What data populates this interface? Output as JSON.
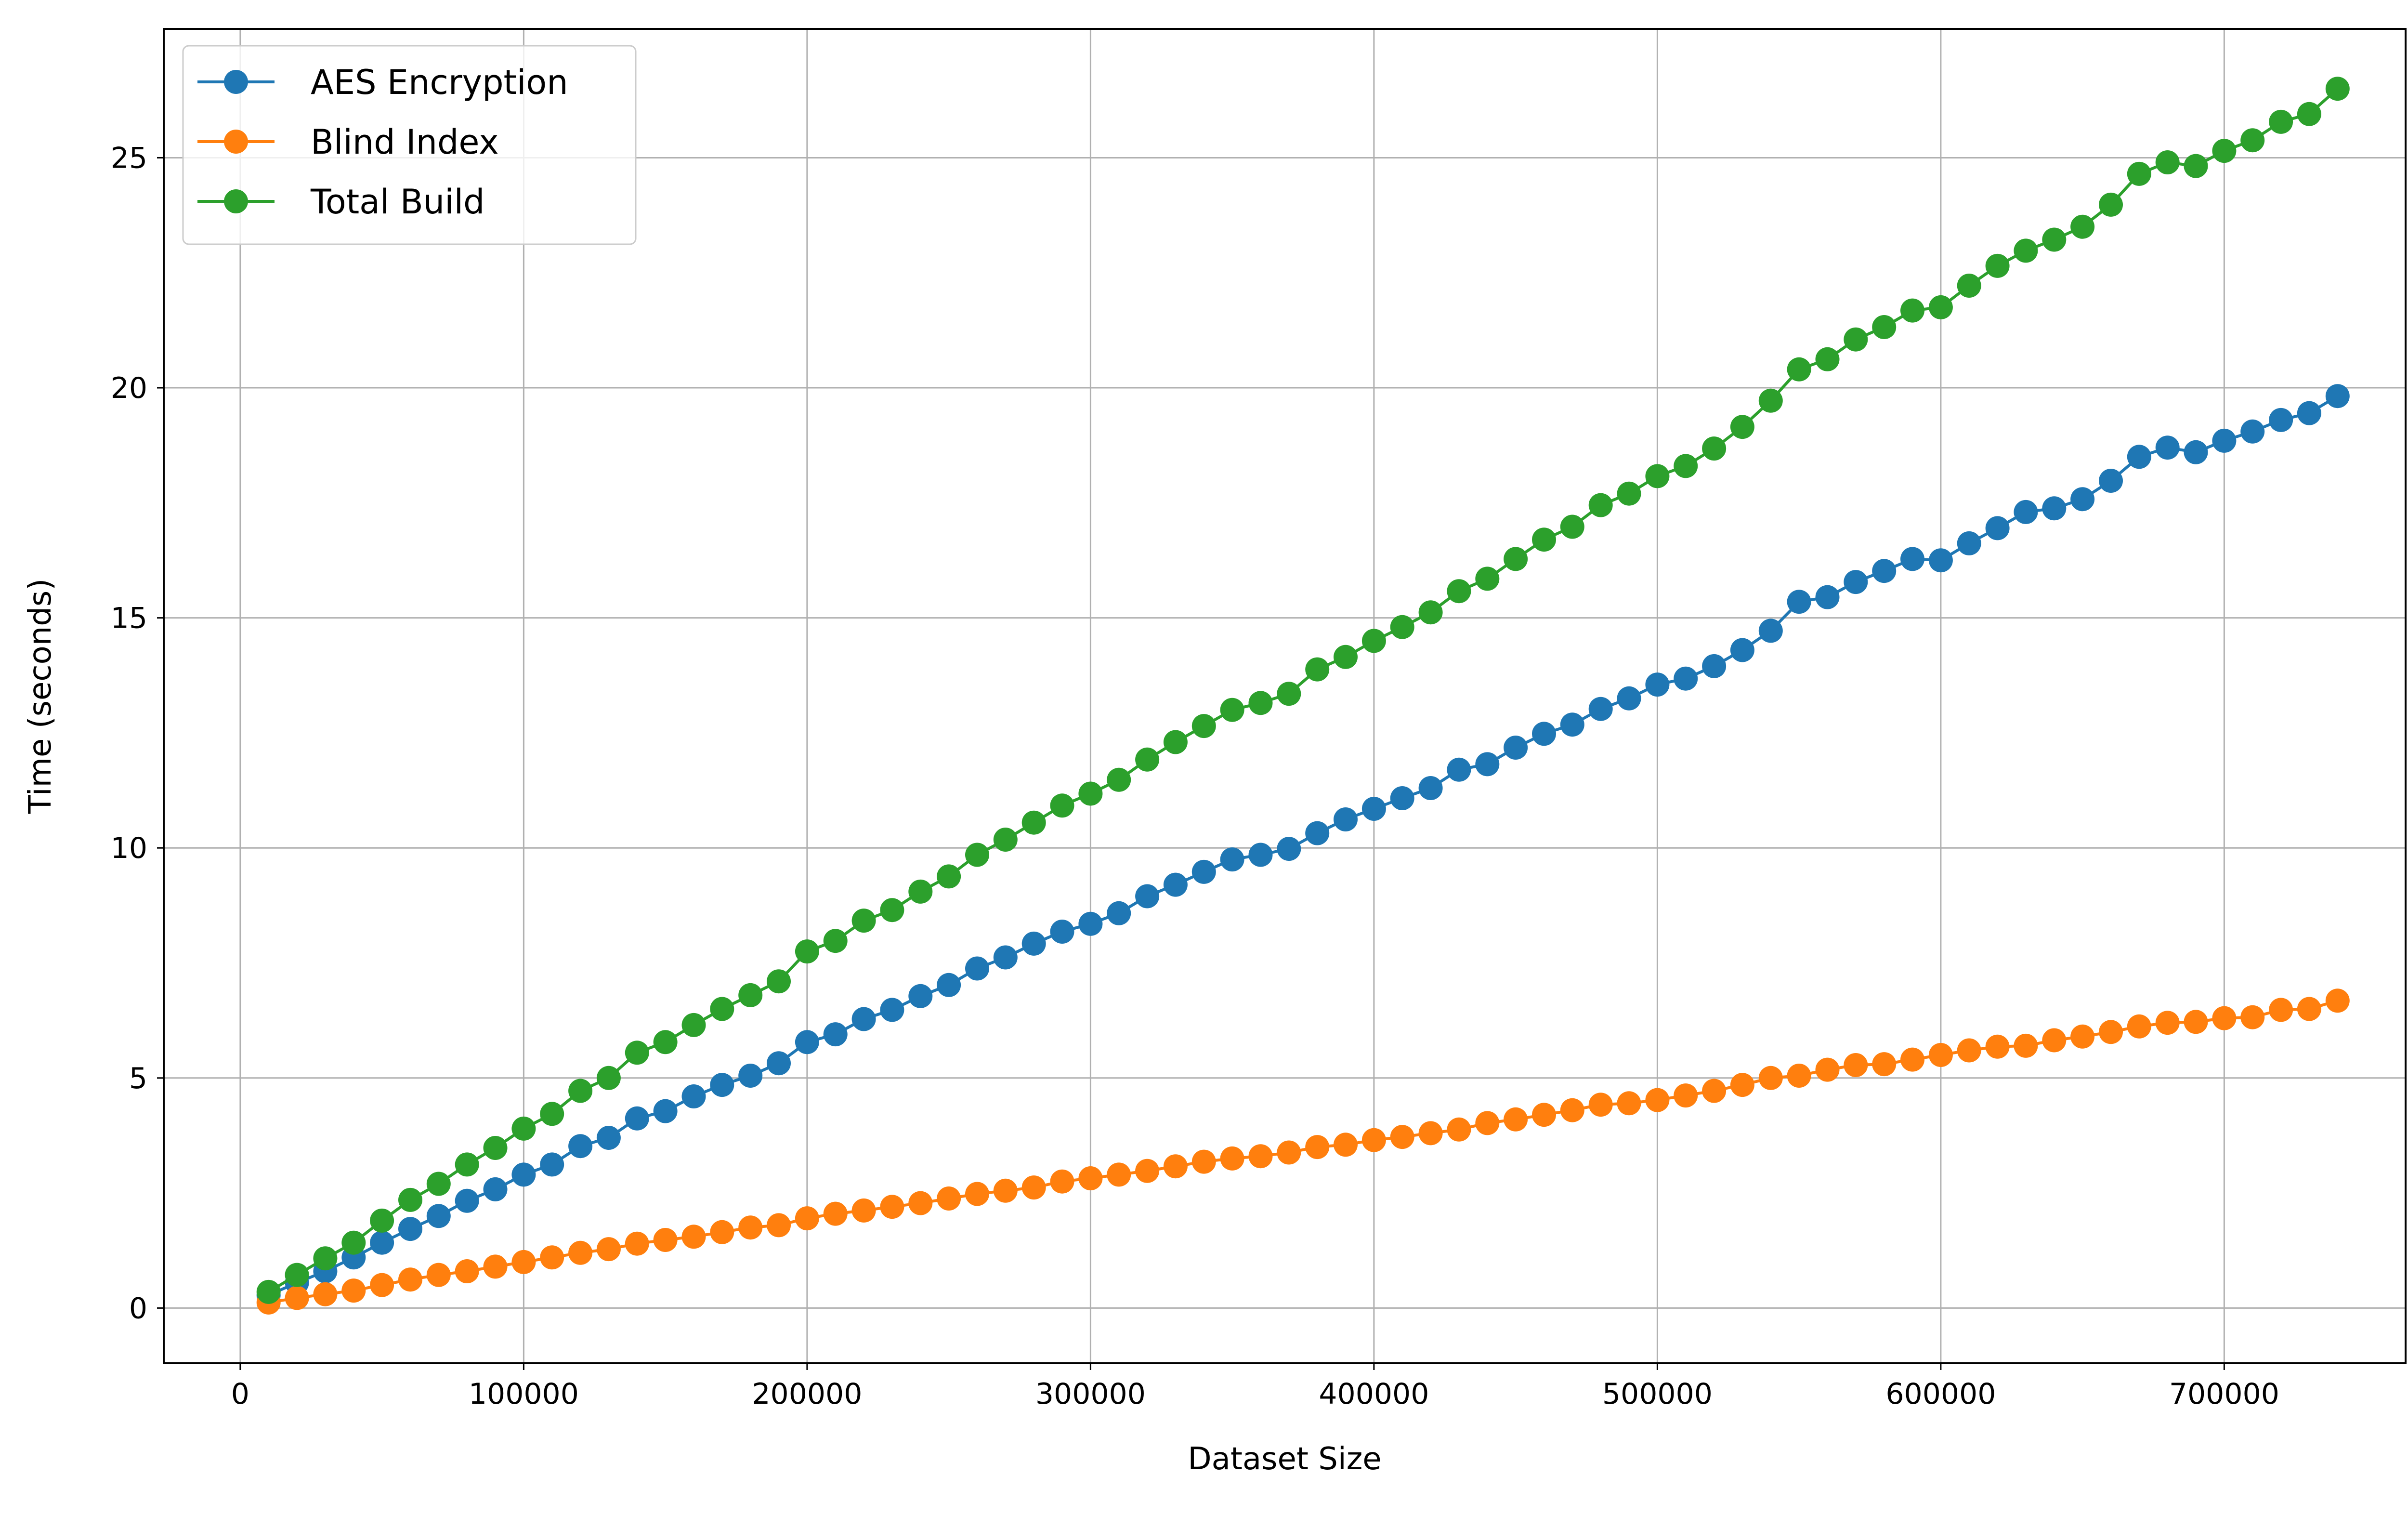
{
  "chart_data": {
    "type": "line",
    "title": "",
    "xlabel": "Dataset Size",
    "ylabel": "Time (seconds)",
    "xlim": [
      -27000,
      764000
    ],
    "ylim": [
      -1.2,
      27.8
    ],
    "xticks": [
      0,
      100000,
      200000,
      300000,
      400000,
      500000,
      600000,
      700000
    ],
    "xtick_labels": [
      "0",
      "100000",
      "200000",
      "300000",
      "400000",
      "500000",
      "600000",
      "700000"
    ],
    "yticks": [
      0,
      5,
      10,
      15,
      20,
      25
    ],
    "ytick_labels": [
      "0",
      "5",
      "10",
      "15",
      "20",
      "25"
    ],
    "grid": true,
    "legend_position": "top-left",
    "markers": "circle",
    "x": [
      10000,
      20000,
      30000,
      40000,
      50000,
      60000,
      70000,
      80000,
      90000,
      100000,
      110000,
      120000,
      130000,
      140000,
      150000,
      160000,
      170000,
      180000,
      190000,
      200000,
      210000,
      220000,
      230000,
      240000,
      250000,
      260000,
      270000,
      280000,
      290000,
      300000,
      310000,
      320000,
      330000,
      340000,
      350000,
      360000,
      370000,
      380000,
      390000,
      400000,
      410000,
      420000,
      430000,
      440000,
      450000,
      460000,
      470000,
      480000,
      490000,
      500000,
      510000,
      520000,
      530000,
      540000,
      550000,
      560000,
      570000,
      580000,
      590000,
      600000,
      610000,
      620000,
      630000,
      640000,
      650000,
      660000,
      670000,
      680000,
      690000,
      700000,
      710000,
      720000,
      730000,
      740000
    ],
    "series": [
      {
        "name": "AES Encryption",
        "color": "#1f77b4",
        "values": [
          0.28,
          0.55,
          0.8,
          1.1,
          1.42,
          1.72,
          2.0,
          2.33,
          2.58,
          2.9,
          3.12,
          3.52,
          3.7,
          4.12,
          4.28,
          4.6,
          4.85,
          5.05,
          5.32,
          5.78,
          5.95,
          6.28,
          6.48,
          6.78,
          7.02,
          7.38,
          7.62,
          7.92,
          8.18,
          8.35,
          8.58,
          8.95,
          9.2,
          9.48,
          9.75,
          9.85,
          9.98,
          10.32,
          10.62,
          10.85,
          11.08,
          11.3,
          11.7,
          11.82,
          12.18,
          12.48,
          12.68,
          13.02,
          13.25,
          13.55,
          13.68,
          13.95,
          14.3,
          14.72,
          15.35,
          15.45,
          15.78,
          16.02,
          16.28,
          16.25,
          16.62,
          16.95,
          17.3,
          17.38,
          17.58,
          17.98,
          18.5,
          18.7,
          18.6,
          18.85,
          19.05,
          19.3,
          19.45,
          19.82
        ]
      },
      {
        "name": "Blind Index",
        "color": "#ff7f0e",
        "values": [
          0.12,
          0.22,
          0.3,
          0.38,
          0.5,
          0.62,
          0.72,
          0.8,
          0.9,
          1.0,
          1.1,
          1.2,
          1.28,
          1.4,
          1.48,
          1.55,
          1.65,
          1.75,
          1.8,
          1.95,
          2.05,
          2.12,
          2.2,
          2.28,
          2.38,
          2.48,
          2.55,
          2.62,
          2.75,
          2.82,
          2.9,
          2.98,
          3.08,
          3.18,
          3.25,
          3.3,
          3.38,
          3.5,
          3.55,
          3.65,
          3.72,
          3.8,
          3.88,
          4.02,
          4.1,
          4.2,
          4.3,
          4.42,
          4.45,
          4.52,
          4.62,
          4.72,
          4.85,
          5.0,
          5.05,
          5.18,
          5.28,
          5.3,
          5.4,
          5.5,
          5.6,
          5.68,
          5.7,
          5.82,
          5.9,
          6.0,
          6.12,
          6.2,
          6.22,
          6.3,
          6.32,
          6.48,
          6.5,
          6.68
        ]
      },
      {
        "name": "Total Build",
        "color": "#2ca02c",
        "values": [
          0.35,
          0.72,
          1.08,
          1.42,
          1.9,
          2.35,
          2.7,
          3.12,
          3.48,
          3.9,
          4.22,
          4.72,
          5.0,
          5.55,
          5.78,
          6.15,
          6.5,
          6.8,
          7.1,
          7.75,
          7.98,
          8.42,
          8.65,
          9.05,
          9.38,
          9.85,
          10.18,
          10.55,
          10.92,
          11.18,
          11.48,
          11.92,
          12.3,
          12.65,
          13.0,
          13.15,
          13.35,
          13.88,
          14.15,
          14.5,
          14.8,
          15.12,
          15.58,
          15.85,
          16.28,
          16.7,
          16.98,
          17.45,
          17.7,
          18.08,
          18.3,
          18.68,
          19.15,
          19.72,
          20.4,
          20.62,
          21.05,
          21.32,
          21.68,
          21.75,
          22.22,
          22.65,
          22.98,
          23.22,
          23.5,
          23.98,
          24.65,
          24.9,
          24.82,
          25.15,
          25.38,
          25.78,
          25.95,
          26.5
        ]
      }
    ]
  }
}
